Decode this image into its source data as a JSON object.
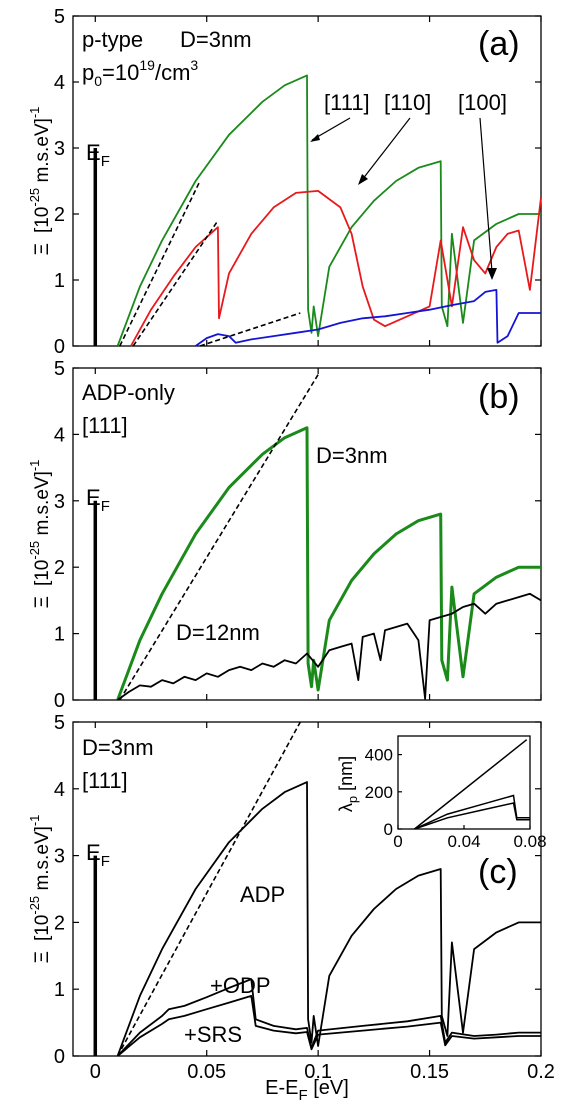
{
  "chart_data": [
    {
      "id": "a",
      "type": "line",
      "panel_label": "(a)",
      "annotations": [
        "p-type",
        "D=3nm",
        "p0=10^19/cm^3"
      ],
      "annotation_parts": {
        "ptype": "p-type",
        "diam": "D=3nm",
        "p0_base": "p",
        "p0_sub": "0",
        "p0_mid": "=10",
        "p0_sup1": "19",
        "p0_unit": "/cm",
        "p0_sup2": "3"
      },
      "fermi_label": "E_F",
      "fermi_parts": {
        "base": "E",
        "sub": "F"
      },
      "ylabel": "Ξ [10^-25 m.s.eV]^-1",
      "ylabel_parts": {
        "sym": "Ξ",
        "pre": "[10",
        "sup1": "-25",
        "mid": " m.s.eV]",
        "sup2": "-1"
      },
      "xlim": [
        -0.01,
        0.2
      ],
      "ylim": [
        0,
        5
      ],
      "yticks": [
        0,
        1,
        2,
        3,
        4,
        5
      ],
      "grid": false,
      "direction_labels": [
        "[111]",
        "[110]",
        "[100]"
      ],
      "series": [
        {
          "name": "[111]",
          "color": "#1a8a1a",
          "x": [
            0.01,
            0.02,
            0.03,
            0.045,
            0.06,
            0.075,
            0.085,
            0.095,
            0.0955,
            0.097,
            0.098,
            0.1,
            0.105,
            0.115,
            0.125,
            0.135,
            0.145,
            0.155,
            0.1555,
            0.158,
            0.16,
            0.165,
            0.17,
            0.18,
            0.19,
            0.2
          ],
          "y": [
            0.0,
            0.9,
            1.6,
            2.5,
            3.2,
            3.7,
            3.95,
            4.1,
            0.55,
            0.2,
            0.6,
            0.15,
            1.2,
            1.8,
            2.2,
            2.5,
            2.7,
            2.8,
            0.6,
            0.3,
            1.7,
            0.35,
            1.6,
            1.85,
            2.0,
            2.0
          ]
        },
        {
          "name": "[110]",
          "color": "#e8191c",
          "x": [
            0.016,
            0.025,
            0.035,
            0.045,
            0.055,
            0.0555,
            0.06,
            0.07,
            0.08,
            0.09,
            0.1,
            0.11,
            0.115,
            0.12,
            0.125,
            0.13,
            0.14,
            0.15,
            0.155,
            0.16,
            0.165,
            0.17,
            0.175,
            0.18,
            0.185,
            0.19,
            0.195,
            0.2
          ],
          "y": [
            0.0,
            0.55,
            1.05,
            1.5,
            1.8,
            0.42,
            1.1,
            1.7,
            2.1,
            2.32,
            2.35,
            2.1,
            1.7,
            0.9,
            0.4,
            0.3,
            0.45,
            0.6,
            1.6,
            0.6,
            1.8,
            1.3,
            1.1,
            1.5,
            1.7,
            1.75,
            0.85,
            2.25
          ]
        },
        {
          "name": "[100]",
          "color": "#1414d6",
          "x": [
            0.045,
            0.05,
            0.055,
            0.06,
            0.063,
            0.07,
            0.08,
            0.09,
            0.1,
            0.11,
            0.12,
            0.13,
            0.14,
            0.15,
            0.16,
            0.17,
            0.175,
            0.18,
            0.1805,
            0.185,
            0.19,
            0.2
          ],
          "y": [
            0.0,
            0.12,
            0.18,
            0.15,
            0.05,
            0.1,
            0.15,
            0.2,
            0.25,
            0.35,
            0.42,
            0.45,
            0.5,
            0.55,
            0.62,
            0.68,
            0.82,
            0.85,
            0.05,
            0.15,
            0.5,
            0.5
          ]
        },
        {
          "name": "dashed-111",
          "color": "#000000",
          "dashed": true,
          "x": [
            0.011,
            0.047
          ],
          "y": [
            0.0,
            2.5
          ]
        },
        {
          "name": "dashed-110",
          "color": "#000000",
          "dashed": true,
          "x": [
            0.017,
            0.055
          ],
          "y": [
            0.0,
            1.9
          ]
        },
        {
          "name": "dashed-100",
          "color": "#000000",
          "dashed": true,
          "x": [
            0.047,
            0.092
          ],
          "y": [
            0.0,
            0.5
          ]
        }
      ]
    },
    {
      "id": "b",
      "type": "line",
      "panel_label": "(b)",
      "annotations": [
        "ADP-only",
        "[111]",
        "D=3nm",
        "D=12nm"
      ],
      "fermi_label": "E_F",
      "fermi_parts": {
        "base": "E",
        "sub": "F"
      },
      "ylabel": "Ξ [10^-25 m.s.eV]^-1",
      "ylabel_parts": {
        "sym": "Ξ",
        "pre": "[10",
        "sup1": "-25",
        "mid": " m.s.eV]",
        "sup2": "-1"
      },
      "xlim": [
        -0.01,
        0.2
      ],
      "ylim": [
        0,
        5
      ],
      "yticks": [
        0,
        1,
        2,
        3,
        4,
        5
      ],
      "grid": false,
      "series": [
        {
          "name": "D=3nm",
          "color": "#1a8a1a",
          "thick": true,
          "x": [
            0.01,
            0.02,
            0.03,
            0.045,
            0.06,
            0.075,
            0.085,
            0.095,
            0.0955,
            0.097,
            0.098,
            0.1,
            0.105,
            0.115,
            0.125,
            0.135,
            0.145,
            0.155,
            0.1555,
            0.158,
            0.16,
            0.165,
            0.17,
            0.18,
            0.19,
            0.2
          ],
          "y": [
            0.0,
            0.9,
            1.6,
            2.5,
            3.2,
            3.7,
            3.95,
            4.1,
            0.55,
            0.2,
            0.6,
            0.15,
            1.2,
            1.8,
            2.2,
            2.5,
            2.7,
            2.8,
            0.6,
            0.3,
            1.7,
            0.35,
            1.6,
            1.85,
            2.0,
            2.0
          ]
        },
        {
          "name": "D=12nm",
          "color": "#000000",
          "x": [
            0.01,
            0.015,
            0.02,
            0.025,
            0.03,
            0.035,
            0.04,
            0.045,
            0.05,
            0.055,
            0.06,
            0.065,
            0.07,
            0.075,
            0.08,
            0.085,
            0.09,
            0.095,
            0.1,
            0.105,
            0.11,
            0.115,
            0.118,
            0.12,
            0.125,
            0.128,
            0.13,
            0.135,
            0.14,
            0.145,
            0.148,
            0.15,
            0.155,
            0.16,
            0.165,
            0.17,
            0.175,
            0.18,
            0.185,
            0.19,
            0.195,
            0.2
          ],
          "y": [
            0.0,
            0.12,
            0.22,
            0.2,
            0.3,
            0.25,
            0.35,
            0.3,
            0.4,
            0.35,
            0.45,
            0.5,
            0.45,
            0.55,
            0.5,
            0.6,
            0.55,
            0.7,
            0.5,
            0.75,
            0.8,
            0.85,
            0.3,
            0.95,
            1.0,
            0.6,
            1.05,
            1.1,
            1.15,
            0.9,
            0.02,
            1.2,
            1.25,
            1.3,
            1.4,
            1.45,
            1.3,
            1.45,
            1.5,
            1.55,
            1.6,
            1.5
          ]
        },
        {
          "name": "dashed",
          "color": "#000000",
          "dashed": true,
          "x": [
            0.011,
            0.1
          ],
          "y": [
            0.0,
            4.9
          ]
        }
      ]
    },
    {
      "id": "c",
      "type": "line",
      "panel_label": "(c)",
      "annotations": [
        "D=3nm",
        "[111]",
        "ADP",
        "+ODP",
        "+SRS"
      ],
      "fermi_label": "E_F",
      "fermi_parts": {
        "base": "E",
        "sub": "F"
      },
      "ylabel": "Ξ [10^-25 m.s.eV]^-1",
      "ylabel_parts": {
        "sym": "Ξ",
        "pre": "[10",
        "sup1": "-25",
        "mid": " m.s.eV]",
        "sup2": "-1"
      },
      "xlabel": "E-E_F [eV]",
      "xlabel_parts": {
        "pre": "E-E",
        "sub": "F",
        "post": " [eV]"
      },
      "xlim": [
        -0.01,
        0.2
      ],
      "ylim": [
        0,
        5
      ],
      "yticks": [
        0,
        1,
        2,
        3,
        4,
        5
      ],
      "xticks": [
        0,
        0.05,
        0.1,
        0.15,
        0.2
      ],
      "xticklabels": [
        "0",
        "0.05",
        "0.1",
        "0.15",
        "0.2"
      ],
      "grid": false,
      "series": [
        {
          "name": "ADP",
          "color": "#000000",
          "x": [
            0.01,
            0.02,
            0.03,
            0.045,
            0.06,
            0.075,
            0.085,
            0.095,
            0.0955,
            0.097,
            0.098,
            0.1,
            0.105,
            0.115,
            0.125,
            0.135,
            0.145,
            0.155,
            0.1555,
            0.158,
            0.16,
            0.165,
            0.17,
            0.18,
            0.19,
            0.2
          ],
          "y": [
            0.0,
            0.9,
            1.6,
            2.5,
            3.2,
            3.7,
            3.95,
            4.1,
            0.55,
            0.2,
            0.6,
            0.15,
            1.2,
            1.8,
            2.2,
            2.5,
            2.7,
            2.8,
            0.6,
            0.3,
            1.7,
            0.35,
            1.6,
            1.85,
            2.0,
            2.0
          ]
        },
        {
          "name": "+ODP",
          "color": "#000000",
          "x": [
            0.01,
            0.02,
            0.03,
            0.033,
            0.04,
            0.05,
            0.06,
            0.07,
            0.072,
            0.08,
            0.09,
            0.095,
            0.097,
            0.1,
            0.12,
            0.14,
            0.155,
            0.157,
            0.16,
            0.17,
            0.18,
            0.19,
            0.2
          ],
          "y": [
            0.0,
            0.35,
            0.6,
            0.7,
            0.75,
            0.88,
            1.02,
            1.15,
            0.55,
            0.45,
            0.4,
            0.42,
            0.12,
            0.38,
            0.45,
            0.52,
            0.6,
            0.2,
            0.35,
            0.3,
            0.32,
            0.35,
            0.35
          ]
        },
        {
          "name": "+SRS",
          "color": "#000000",
          "x": [
            0.01,
            0.02,
            0.03,
            0.033,
            0.04,
            0.05,
            0.06,
            0.07,
            0.072,
            0.08,
            0.09,
            0.095,
            0.097,
            0.1,
            0.12,
            0.14,
            0.155,
            0.157,
            0.16,
            0.17,
            0.18,
            0.19,
            0.2
          ],
          "y": [
            0.0,
            0.28,
            0.48,
            0.55,
            0.6,
            0.7,
            0.8,
            0.9,
            0.45,
            0.38,
            0.34,
            0.36,
            0.1,
            0.32,
            0.38,
            0.44,
            0.5,
            0.16,
            0.3,
            0.26,
            0.28,
            0.3,
            0.3
          ]
        },
        {
          "name": "dashed",
          "color": "#000000",
          "dashed": true,
          "x": [
            0.01,
            0.092
          ],
          "y": [
            0.0,
            5.0
          ]
        }
      ],
      "inset": {
        "ylabel": "λp [nm]",
        "ylabel_parts": {
          "sym": "λ",
          "sub": "p",
          "post": " [nm]"
        },
        "xlim": [
          0,
          0.08
        ],
        "ylim": [
          0,
          500
        ],
        "xticks": [
          0,
          0.04,
          0.08
        ],
        "xticklabels": [
          "0",
          "0.04",
          "0.08"
        ],
        "yticks": [
          0,
          200,
          400
        ],
        "yticklabels": [
          "0",
          "200",
          "400"
        ],
        "series": [
          {
            "name": "ADP",
            "x": [
              0.01,
              0.078
            ],
            "y": [
              0,
              480
            ]
          },
          {
            "name": "+ODP",
            "x": [
              0.01,
              0.03,
              0.05,
              0.07,
              0.072,
              0.08
            ],
            "y": [
              0,
              80,
              130,
              180,
              60,
              60
            ]
          },
          {
            "name": "+SRS",
            "x": [
              0.01,
              0.03,
              0.05,
              0.07,
              0.072,
              0.08
            ],
            "y": [
              0,
              60,
              100,
              140,
              50,
              50
            ]
          }
        ]
      }
    }
  ]
}
